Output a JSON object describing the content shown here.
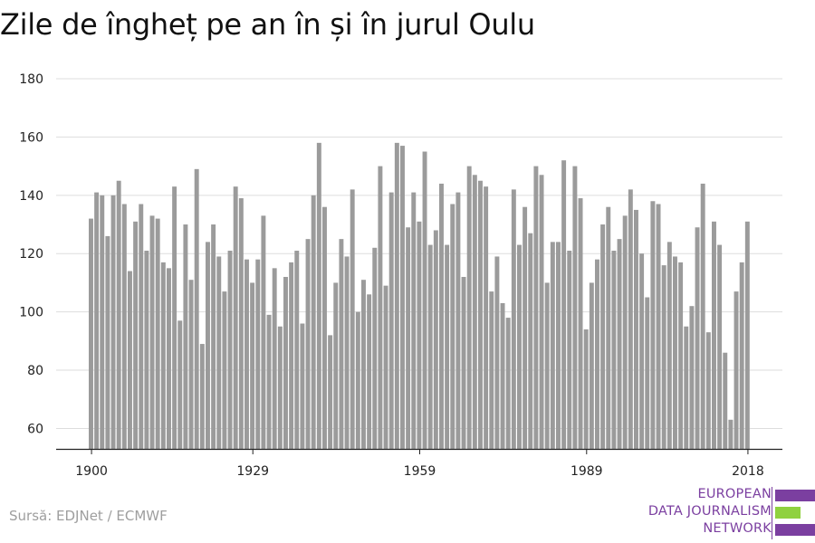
{
  "title": "Zile de îngheț pe an în și în jurul Oulu",
  "source": "Sursă: EDJNet / ECMWF",
  "logo": {
    "lines": [
      "EUROPEAN",
      "DATA JOURNALISM",
      "NETWORK"
    ],
    "colors": {
      "purple": "#7b3fa0",
      "green": "#8fd13f"
    }
  },
  "colors": {
    "bar": "#9b9b9b",
    "grid": "#dddddd",
    "axis": "#222222"
  },
  "chart_data": {
    "type": "bar",
    "title": "Zile de îngheț pe an în și în jurul Oulu",
    "xlabel": "",
    "ylabel": "",
    "ylim": [
      53,
      180
    ],
    "yticks": [
      60,
      80,
      100,
      120,
      140,
      160,
      180
    ],
    "xticks": [
      1900,
      1929,
      1959,
      1989,
      2018
    ],
    "grid": true,
    "x": [
      1900,
      1901,
      1902,
      1903,
      1904,
      1905,
      1906,
      1907,
      1908,
      1909,
      1910,
      1911,
      1912,
      1913,
      1914,
      1915,
      1916,
      1917,
      1918,
      1919,
      1920,
      1921,
      1922,
      1923,
      1924,
      1925,
      1926,
      1927,
      1928,
      1929,
      1930,
      1931,
      1932,
      1933,
      1934,
      1935,
      1936,
      1937,
      1938,
      1939,
      1940,
      1941,
      1942,
      1943,
      1944,
      1945,
      1946,
      1947,
      1948,
      1949,
      1950,
      1951,
      1952,
      1953,
      1954,
      1955,
      1956,
      1957,
      1958,
      1959,
      1960,
      1961,
      1962,
      1963,
      1964,
      1965,
      1966,
      1967,
      1968,
      1969,
      1970,
      1971,
      1972,
      1973,
      1974,
      1975,
      1976,
      1977,
      1978,
      1979,
      1980,
      1981,
      1982,
      1983,
      1984,
      1985,
      1986,
      1987,
      1988,
      1989,
      1990,
      1991,
      1992,
      1993,
      1994,
      1995,
      1996,
      1997,
      1998,
      1999,
      2000,
      2001,
      2002,
      2003,
      2004,
      2005,
      2006,
      2007,
      2008,
      2009,
      2010,
      2011,
      2012,
      2013,
      2014,
      2015,
      2016,
      2017,
      2018
    ],
    "values": [
      132,
      141,
      140,
      126,
      140,
      145,
      137,
      114,
      131,
      137,
      121,
      133,
      132,
      117,
      115,
      143,
      97,
      130,
      111,
      149,
      89,
      124,
      130,
      119,
      107,
      121,
      143,
      139,
      118,
      110,
      118,
      133,
      99,
      115,
      95,
      112,
      117,
      121,
      96,
      125,
      140,
      158,
      136,
      92,
      110,
      125,
      119,
      142,
      100,
      111,
      106,
      122,
      150,
      109,
      141,
      158,
      157,
      129,
      141,
      131,
      155,
      123,
      128,
      144,
      123,
      137,
      141,
      112,
      150,
      147,
      145,
      143,
      107,
      119,
      103,
      98,
      142,
      123,
      136,
      127,
      150,
      147,
      110,
      124,
      124,
      152,
      121,
      150,
      139,
      94,
      110,
      118,
      130,
      136,
      121,
      125,
      133,
      142,
      135,
      120,
      105,
      138,
      137,
      116,
      124,
      119,
      117,
      95,
      102,
      129,
      144,
      93,
      131,
      123,
      86,
      63,
      107,
      117,
      131
    ]
  }
}
